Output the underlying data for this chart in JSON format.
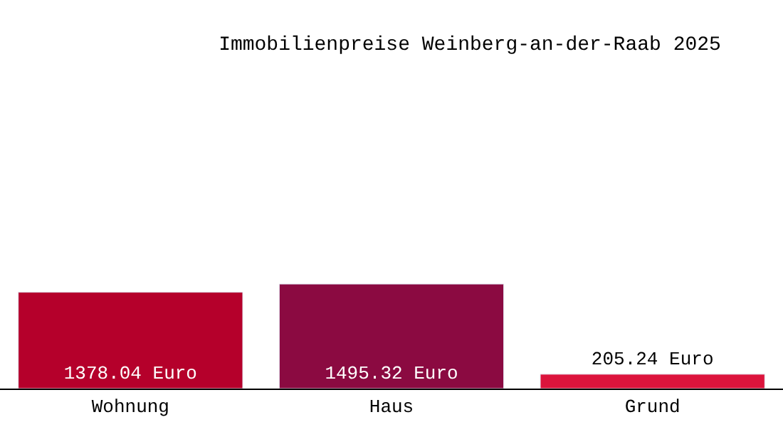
{
  "chart_data": {
    "type": "bar",
    "title": "Immobilienpreise Weinberg-an-der-Raab 2025",
    "categories": [
      "Wohnung",
      "Haus",
      "Grund"
    ],
    "values": [
      1378.04,
      1495.32,
      205.24
    ],
    "value_labels": [
      "1378.04 Euro",
      "1495.32 Euro",
      "205.24 Euro"
    ],
    "colors": [
      "#b5002b",
      "#8b0a41",
      "#dc143c"
    ],
    "legend": false
  }
}
